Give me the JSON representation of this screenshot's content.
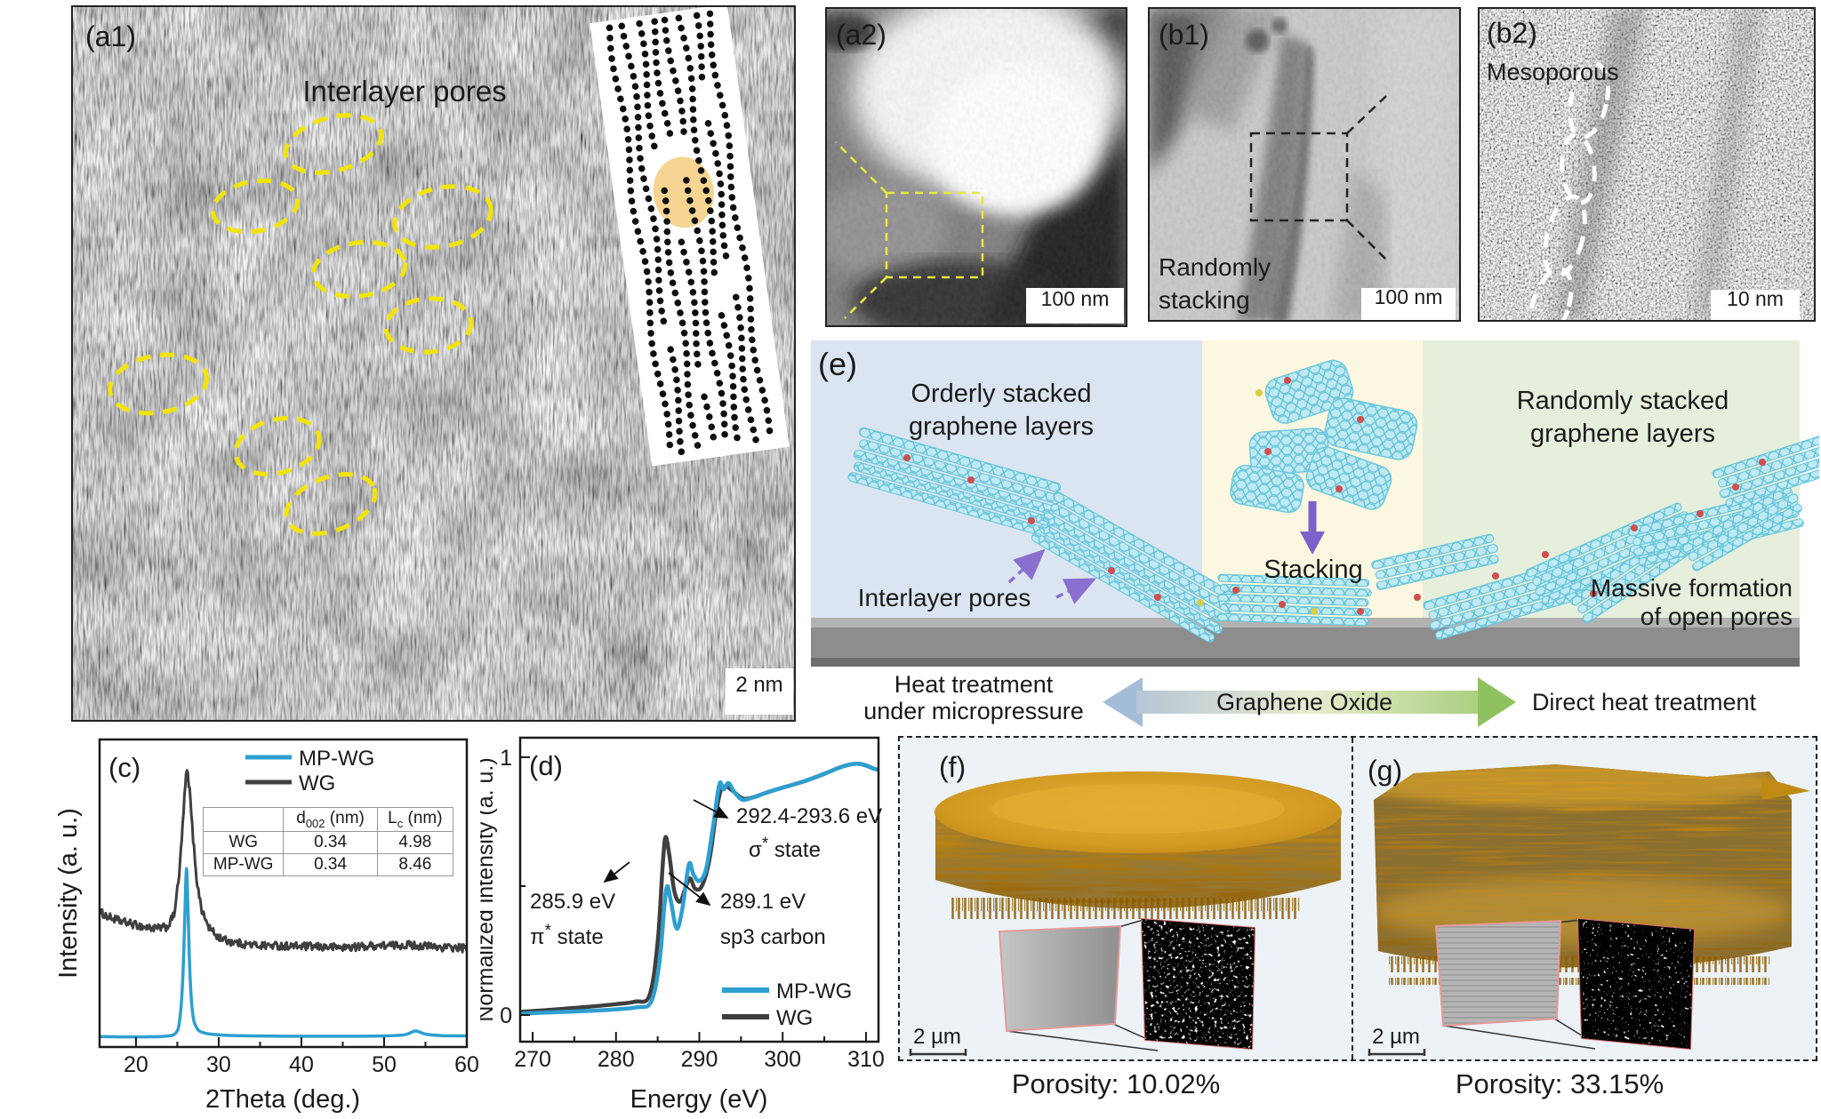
{
  "panels": {
    "a1": {
      "label": "(a1)",
      "annotation": "Interlayer pores",
      "scale_bar": "2 nm"
    },
    "a2": {
      "label": "(a2)",
      "scale_bar": "100 nm"
    },
    "b1": {
      "label": "(b1)",
      "annotation_line1": "Randomly",
      "annotation_line2": "stacking",
      "scale_bar": "100 nm"
    },
    "b2": {
      "label": "(b2)",
      "annotation": "Mesoporous",
      "scale_bar": "10 nm"
    },
    "e": {
      "label": "(e)",
      "orderly_title_line1": "Orderly stacked",
      "orderly_title_line2": "graphene layers",
      "random_title_line1": "Randomly stacked",
      "random_title_line2": "graphene layers",
      "stacking_label": "Stacking",
      "interlayer_pores_label": "Interlayer pores",
      "massive_line1": "Massive formation",
      "massive_line2": "of open pores",
      "heat_line1": "Heat treatment",
      "heat_line2": "under micropressure",
      "center_arrow_label": "Graphene Oxide",
      "direct_heat_label": "Direct heat treatment",
      "colors": {
        "orderly_bg": "#dbe5f1",
        "stacking_bg": "#fcf7e0",
        "random_bg": "#e5efdb",
        "graphene": "#9fe0ee",
        "substrate": "#8d8d8d",
        "arrow_purple": "#7a62c9"
      }
    },
    "f": {
      "label": "(f)",
      "scale_bar": "2 µm",
      "porosity": "Porosity: 10.02%"
    },
    "g": {
      "label": "(g)",
      "scale_bar": "2 µm",
      "porosity": "Porosity: 33.15%"
    }
  },
  "chart_data": [
    {
      "type": "line",
      "panel_label": "(c)",
      "xlabel": "2Theta (deg.)",
      "ylabel": "Intensity (a. u.)",
      "xlim": [
        15.6,
        60
      ],
      "xticks": [
        20,
        30,
        40,
        50,
        60
      ],
      "xminor": [
        25,
        35,
        45,
        55
      ],
      "grid": false,
      "legend_position": "top-center",
      "series": [
        {
          "name": "MP-WG",
          "color": "#2d9fd0",
          "noise": 0.003,
          "peak_2theta": 26.1,
          "points": [
            [
              15.6,
              0.034
            ],
            [
              18,
              0.033
            ],
            [
              21,
              0.033
            ],
            [
              23.5,
              0.035
            ],
            [
              24.8,
              0.045
            ],
            [
              25.3,
              0.09
            ],
            [
              25.65,
              0.22
            ],
            [
              25.9,
              0.42
            ],
            [
              26.1,
              0.58
            ],
            [
              26.3,
              0.44
            ],
            [
              26.55,
              0.22
            ],
            [
              26.9,
              0.1
            ],
            [
              27.4,
              0.06
            ],
            [
              28,
              0.048
            ],
            [
              29,
              0.042
            ],
            [
              31,
              0.038
            ],
            [
              34,
              0.036
            ],
            [
              38,
              0.035
            ],
            [
              42,
              0.035
            ],
            [
              46,
              0.035
            ],
            [
              50,
              0.036
            ],
            [
              52.5,
              0.04
            ],
            [
              53.8,
              0.052
            ],
            [
              55,
              0.042
            ],
            [
              57,
              0.037
            ],
            [
              60,
              0.036
            ]
          ]
        },
        {
          "name": "WG",
          "color": "#3f3f3f",
          "noise": 0.013,
          "peak_2theta": 26.2,
          "points": [
            [
              15.6,
              0.44
            ],
            [
              16.5,
              0.425
            ],
            [
              18,
              0.41
            ],
            [
              19.5,
              0.4
            ],
            [
              21,
              0.39
            ],
            [
              22.5,
              0.385
            ],
            [
              23.8,
              0.39
            ],
            [
              24.6,
              0.43
            ],
            [
              25.2,
              0.55
            ],
            [
              25.7,
              0.74
            ],
            [
              26.0,
              0.87
            ],
            [
              26.2,
              0.9
            ],
            [
              26.5,
              0.83
            ],
            [
              26.9,
              0.68
            ],
            [
              27.4,
              0.53
            ],
            [
              28,
              0.44
            ],
            [
              28.8,
              0.39
            ],
            [
              29.8,
              0.36
            ],
            [
              31,
              0.345
            ],
            [
              33,
              0.335
            ],
            [
              35,
              0.33
            ],
            [
              37,
              0.33
            ],
            [
              39,
              0.328
            ],
            [
              41,
              0.326
            ],
            [
              43,
              0.325
            ],
            [
              45,
              0.324
            ],
            [
              47,
              0.326
            ],
            [
              49,
              0.33
            ],
            [
              51,
              0.33
            ],
            [
              53,
              0.332
            ],
            [
              55,
              0.328
            ],
            [
              57,
              0.324
            ],
            [
              59,
              0.322
            ],
            [
              60,
              0.32
            ]
          ]
        }
      ],
      "inset_table": {
        "header": {
          "col1_main": "d",
          "col1_sub": "002",
          "col1_unit": " (nm)",
          "col2_main": "L",
          "col2_sub": "c",
          "col2_unit": " (nm)"
        },
        "rows": [
          [
            "WG",
            "0.34",
            "4.98"
          ],
          [
            "MP-WG",
            "0.34",
            "8.46"
          ]
        ]
      }
    },
    {
      "type": "line",
      "panel_label": "(d)",
      "xlabel": "Energy (eV)",
      "ylabel": "Normalized intensity (a. u.)",
      "xlim": [
        268.5,
        311.5
      ],
      "xticks": [
        270,
        280,
        290,
        300,
        310
      ],
      "xminor": [
        275,
        285,
        295,
        305
      ],
      "yticks": [
        0,
        1
      ],
      "yminor": [
        0.5
      ],
      "series": [
        {
          "name": "MP-WG",
          "color": "#2d9fd0",
          "points": [
            [
              268.5,
              0.005
            ],
            [
              272,
              0.01
            ],
            [
              276,
              0.015
            ],
            [
              280,
              0.022
            ],
            [
              282.5,
              0.03
            ],
            [
              284.2,
              0.05
            ],
            [
              285.2,
              0.2
            ],
            [
              285.8,
              0.42
            ],
            [
              286.15,
              0.5
            ],
            [
              286.6,
              0.44
            ],
            [
              287.3,
              0.335
            ],
            [
              288.0,
              0.42
            ],
            [
              288.75,
              0.585
            ],
            [
              289.3,
              0.545
            ],
            [
              290.0,
              0.52
            ],
            [
              290.8,
              0.565
            ],
            [
              291.6,
              0.72
            ],
            [
              292.4,
              0.895
            ],
            [
              292.9,
              0.875
            ],
            [
              293.5,
              0.9
            ],
            [
              294.2,
              0.865
            ],
            [
              295.2,
              0.835
            ],
            [
              296.5,
              0.845
            ],
            [
              298,
              0.862
            ],
            [
              300,
              0.882
            ],
            [
              302.5,
              0.906
            ],
            [
              305,
              0.936
            ],
            [
              307,
              0.962
            ],
            [
              308.8,
              0.975
            ],
            [
              310,
              0.968
            ],
            [
              311,
              0.955
            ],
            [
              311.5,
              0.952
            ]
          ]
        },
        {
          "name": "WG",
          "color": "#3f3f3f",
          "points": [
            [
              268.5,
              0.012
            ],
            [
              272,
              0.02
            ],
            [
              276,
              0.03
            ],
            [
              280,
              0.042
            ],
            [
              282.3,
              0.052
            ],
            [
              284,
              0.075
            ],
            [
              285.0,
              0.28
            ],
            [
              285.6,
              0.58
            ],
            [
              285.95,
              0.69
            ],
            [
              286.4,
              0.62
            ],
            [
              287.0,
              0.48
            ],
            [
              287.7,
              0.44
            ],
            [
              288.4,
              0.5
            ],
            [
              288.9,
              0.53
            ],
            [
              289.5,
              0.49
            ],
            [
              290.3,
              0.5
            ],
            [
              291.2,
              0.6
            ],
            [
              292.0,
              0.78
            ],
            [
              292.6,
              0.875
            ],
            [
              293.3,
              0.885
            ],
            [
              294.0,
              0.87
            ],
            [
              295.2,
              0.84
            ],
            [
              296.5,
              0.845
            ],
            [
              298,
              0.862
            ],
            [
              300,
              0.882
            ],
            [
              302.5,
              0.906
            ],
            [
              305,
              0.936
            ],
            [
              307,
              0.962
            ],
            [
              308.8,
              0.975
            ],
            [
              310,
              0.968
            ],
            [
              311,
              0.955
            ],
            [
              311.5,
              0.952
            ]
          ]
        }
      ],
      "annotations": [
        {
          "line1": "292.4-293.6 eV",
          "sym": "σ",
          "sup": "*",
          "rest": " state"
        },
        {
          "line1": "285.9 eV",
          "sym": "π",
          "sup": "*",
          "rest": " state"
        },
        {
          "line1": "289.1 eV",
          "line2": "sp3 carbon"
        }
      ]
    }
  ]
}
